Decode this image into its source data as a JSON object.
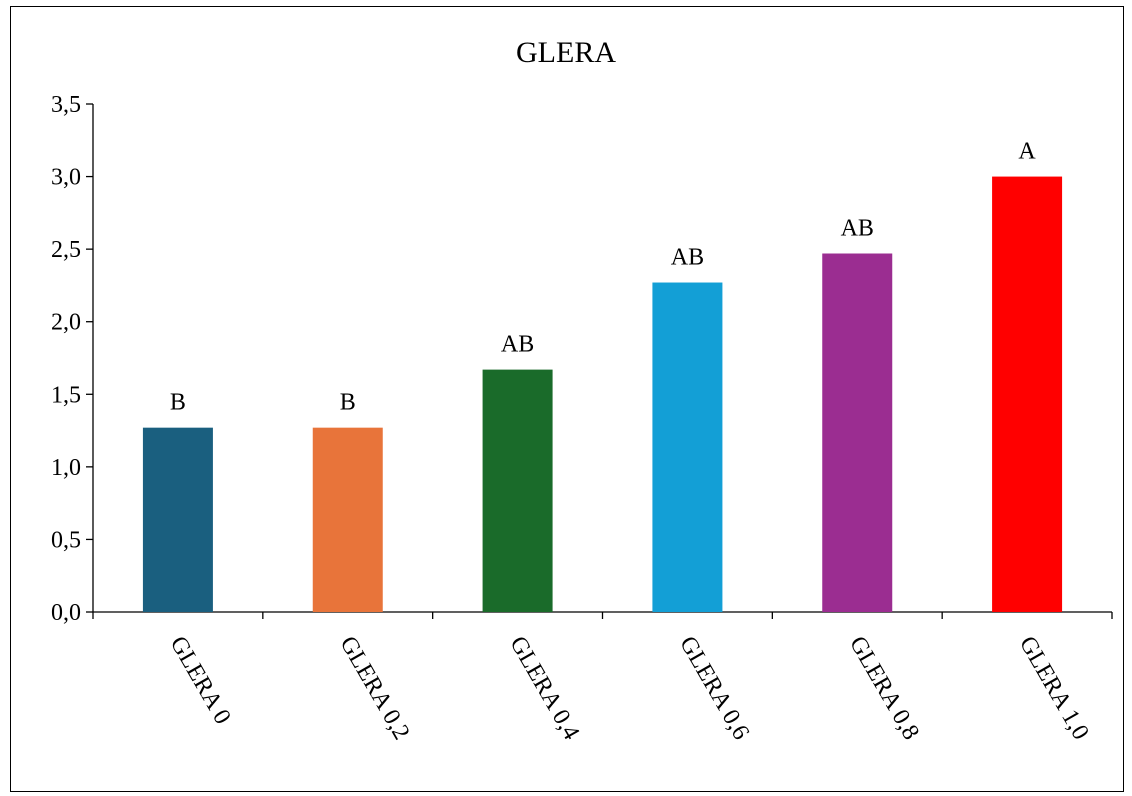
{
  "chart_data": {
    "type": "bar",
    "title": "GLERA",
    "xlabel": "",
    "ylabel": "",
    "categories": [
      "GLERA 0",
      "GLERA 0,2",
      "GLERA 0,4",
      "GLERA 0,6",
      "GLERA 0,8",
      "GLERA 1,0"
    ],
    "values": [
      1.27,
      1.27,
      1.67,
      2.27,
      2.47,
      3.0
    ],
    "data_labels": [
      "B",
      "B",
      "AB",
      "AB",
      "AB",
      "A"
    ],
    "colors": [
      "#1a5f7f",
      "#e8743a",
      "#1a6b2a",
      "#139fd6",
      "#9b2d91",
      "#ff0000"
    ],
    "ylim": [
      0,
      3.5
    ],
    "yticks": [
      0,
      0.5,
      1.0,
      1.5,
      2.0,
      2.5,
      3.0,
      3.5
    ],
    "ytick_labels": [
      "0,0",
      "0,5",
      "1,0",
      "1,5",
      "2,0",
      "2,5",
      "3,0",
      "3,5"
    ],
    "grid": false,
    "legend": "none"
  }
}
